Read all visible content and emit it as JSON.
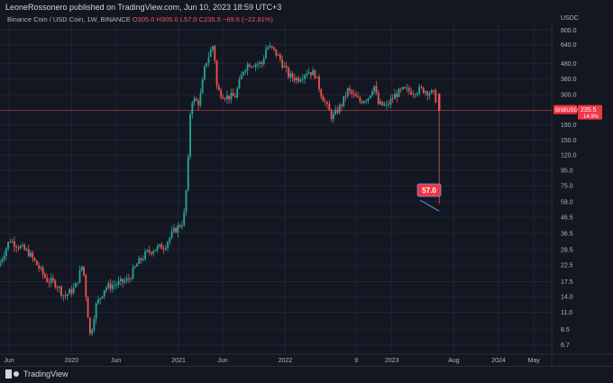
{
  "header": {
    "published": "LeoneRossonero published on TradingView.com, Jun 10, 2023 18:59 UTC+3"
  },
  "legend": {
    "symbol": "Binance Coin / USD Coin, 1W, BINANCE",
    "o": "O305.0",
    "h": "H305.0",
    "l": "L57.0",
    "c": "C235.5",
    "chg": "−69.6 (−22.81%)"
  },
  "footer": {
    "brand": "TradingView"
  },
  "colors": {
    "up": "#26a69a",
    "down": "#ef5350",
    "bg": "#131722",
    "grid": "#1f2433",
    "label_bg": "#f23645"
  },
  "chart_data": {
    "type": "candlestick",
    "log_scale": true,
    "currency": "USDC",
    "symbol": "BNBUSDC",
    "y_ticks": [
      "800.0",
      "640.0",
      "480.0",
      "380.0",
      "300.0",
      "190.0",
      "150.0",
      "120.0",
      "95.0",
      "75.0",
      "59.0",
      "46.5",
      "36.5",
      "28.5",
      "22.5",
      "17.5",
      "14.0",
      "11.0",
      "8.5",
      "6.7"
    ],
    "x_ticks": [
      {
        "label": "Jun",
        "date": "2019-06"
      },
      {
        "label": "2020",
        "date": "2020-01"
      },
      {
        "label": "Jun",
        "date": "2020-06"
      },
      {
        "label": "2021",
        "date": "2021-01"
      },
      {
        "label": "Jun",
        "date": "2021-06"
      },
      {
        "label": "2022",
        "date": "2022-01"
      },
      {
        "label": "9",
        "date": "2022-09"
      },
      {
        "label": "2023",
        "date": "2023-01"
      },
      {
        "label": "Aug",
        "date": "2023-08"
      },
      {
        "label": "2024",
        "date": "2024-01"
      },
      {
        "label": "May",
        "date": "2024-05"
      }
    ],
    "last_price": {
      "label": "BNBUSDC",
      "value": "235.5",
      "extra": "14.9%"
    },
    "low_annotation": {
      "value": "57.0",
      "date": "2023-06-12"
    },
    "price_path": [
      [
        "2019-05-01",
        22
      ],
      [
        "2019-06-10",
        33
      ],
      [
        "2019-07-01",
        31
      ],
      [
        "2019-08-15",
        27
      ],
      [
        "2019-09-15",
        22
      ],
      [
        "2019-10-15",
        18
      ],
      [
        "2019-11-15",
        17
      ],
      [
        "2019-12-15",
        14
      ],
      [
        "2020-01-20",
        16
      ],
      [
        "2020-02-15",
        23
      ],
      [
        "2020-03-12",
        7.5
      ],
      [
        "2020-03-30",
        12
      ],
      [
        "2020-05-01",
        16
      ],
      [
        "2020-06-15",
        17
      ],
      [
        "2020-07-20",
        18
      ],
      [
        "2020-08-20",
        23
      ],
      [
        "2020-09-20",
        27
      ],
      [
        "2020-10-20",
        29
      ],
      [
        "2020-11-20",
        30
      ],
      [
        "2020-12-20",
        37
      ],
      [
        "2021-01-25",
        44
      ],
      [
        "2021-02-08",
        90
      ],
      [
        "2021-02-19",
        280
      ],
      [
        "2021-03-20",
        265
      ],
      [
        "2021-04-10",
        480
      ],
      [
        "2021-05-08",
        650
      ],
      [
        "2021-05-20",
        320
      ],
      [
        "2021-06-20",
        290
      ],
      [
        "2021-07-20",
        290
      ],
      [
        "2021-08-20",
        450
      ],
      [
        "2021-09-05",
        480
      ],
      [
        "2021-10-20",
        480
      ],
      [
        "2021-11-05",
        620
      ],
      [
        "2021-11-25",
        600
      ],
      [
        "2021-12-20",
        520
      ],
      [
        "2022-01-20",
        400
      ],
      [
        "2022-02-20",
        380
      ],
      [
        "2022-03-25",
        430
      ],
      [
        "2022-04-20",
        410
      ],
      [
        "2022-05-12",
        300
      ],
      [
        "2022-06-18",
        210
      ],
      [
        "2022-07-20",
        260
      ],
      [
        "2022-08-10",
        320
      ],
      [
        "2022-09-20",
        270
      ],
      [
        "2022-10-20",
        290
      ],
      [
        "2022-11-08",
        350
      ],
      [
        "2022-11-22",
        260
      ],
      [
        "2022-12-20",
        250
      ],
      [
        "2023-01-20",
        300
      ],
      [
        "2023-02-15",
        320
      ],
      [
        "2023-03-20",
        315
      ],
      [
        "2023-04-20",
        325
      ],
      [
        "2023-05-20",
        310
      ],
      [
        "2023-06-05",
        300
      ],
      [
        "2023-06-12",
        235.5
      ]
    ]
  }
}
